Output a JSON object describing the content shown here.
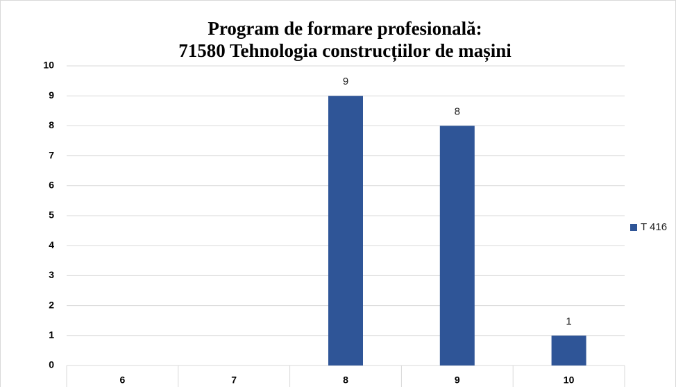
{
  "chart_data": {
    "type": "bar",
    "title": [
      "Program de formare profesională:",
      "71580 Tehnologia construcțiilor de mașini"
    ],
    "categories": [
      "6",
      "7",
      "8",
      "9",
      "10"
    ],
    "series": [
      {
        "name": "T 416",
        "color": "#2f5597",
        "values": [
          null,
          null,
          9,
          8,
          1
        ]
      }
    ],
    "ylim": [
      0,
      10
    ],
    "yticks": [
      0,
      1,
      2,
      3,
      4,
      5,
      6,
      7,
      8,
      9,
      10
    ],
    "grid": true,
    "legend": "right"
  }
}
